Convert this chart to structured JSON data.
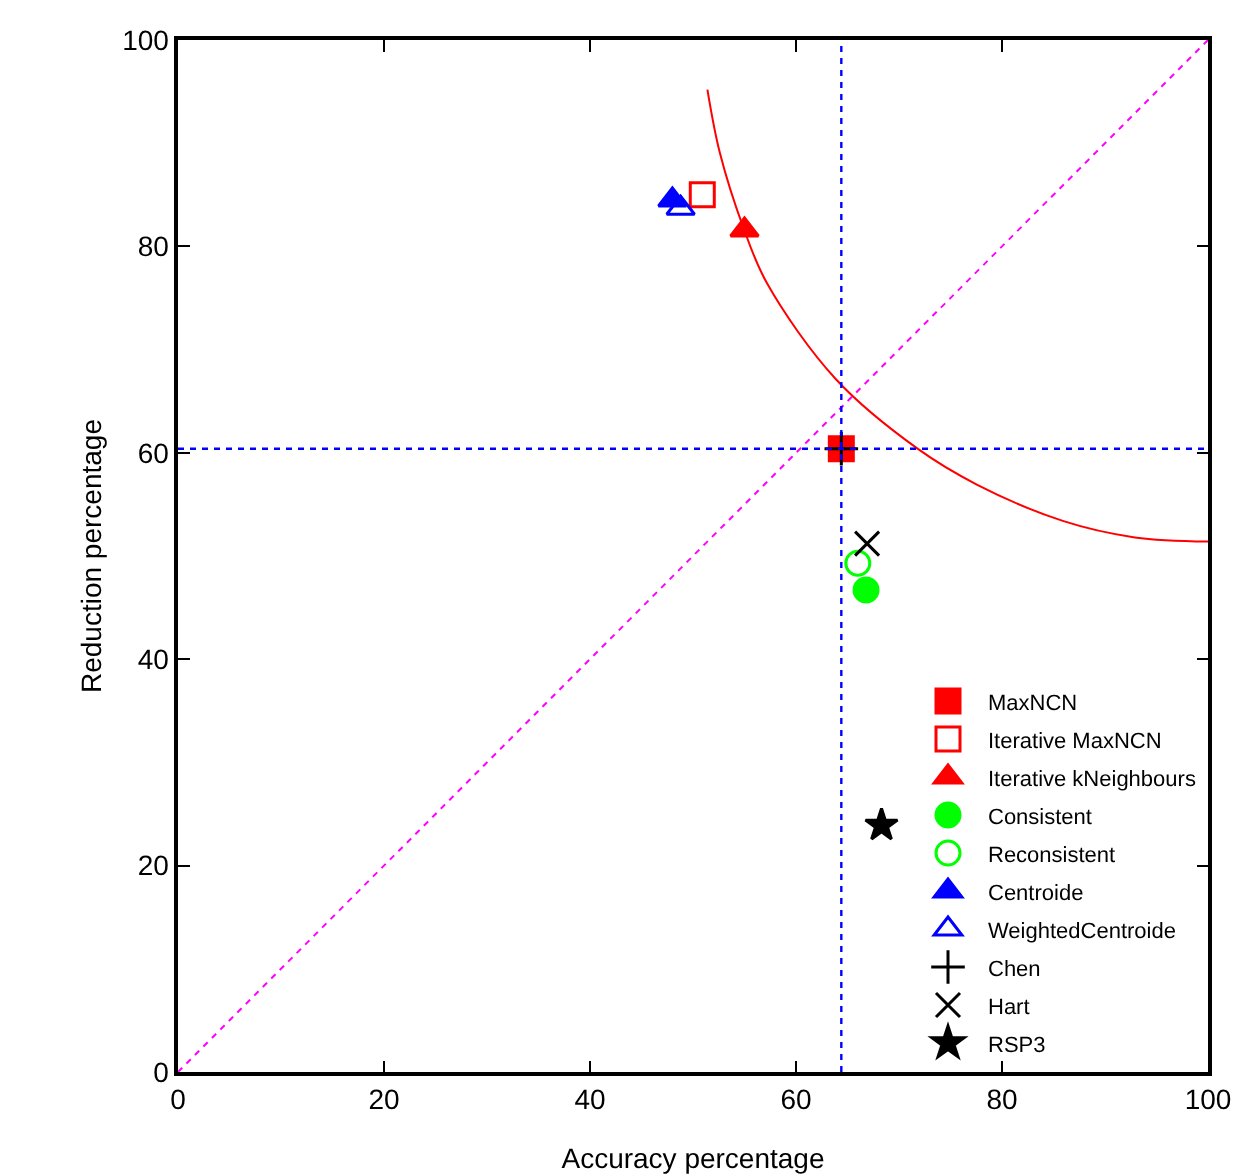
{
  "chart_data": {
    "type": "scatter",
    "xlabel": "Accuracy percentage",
    "ylabel": "Reduction percentage",
    "xlim": [
      0,
      100
    ],
    "ylim": [
      0,
      100
    ],
    "xticks": [
      0,
      20,
      40,
      60,
      80,
      100
    ],
    "yticks": [
      0,
      20,
      40,
      60,
      80,
      100
    ],
    "grid": false,
    "legend": "bottom right",
    "series": [
      {
        "type": "line",
        "color": "#ff00ff",
        "line_style": "dotted",
        "marker": "none",
        "x": [
          0,
          100
        ],
        "values": [
          0,
          100
        ]
      },
      {
        "type": "line",
        "color": "#ff0000",
        "line_style": "solid",
        "marker": "none",
        "x": [
          51.4,
          52.6,
          54.9,
          57.2,
          63.9,
          71.8,
          77.6,
          85.9,
          92.9,
          100
        ],
        "values": [
          95.2,
          89.1,
          81.8,
          76.4,
          67.1,
          60.4,
          56.9,
          53.4,
          51.8,
          51.4
        ]
      },
      {
        "name": "MaxNCN",
        "color": "#ff0000",
        "marker": "square",
        "x": [
          64.4
        ],
        "values": [
          60.4
        ]
      },
      {
        "name": "Iterative MaxNCN",
        "color": "#ff0000",
        "marker": "square-open",
        "x": [
          50.9
        ],
        "values": [
          85.0
        ]
      },
      {
        "name": "Iterative kNeighbours",
        "color": "#ff0000",
        "marker": "triangle",
        "x": [
          55.0
        ],
        "values": [
          81.6
        ]
      },
      {
        "name": "Consistent",
        "color": "#00ff00",
        "marker": "circle",
        "x": [
          66.8
        ],
        "values": [
          46.7
        ]
      },
      {
        "name": "Reconsistent",
        "color": "#00ff00",
        "marker": "circle-open",
        "x": [
          66.0
        ],
        "values": [
          49.3
        ]
      },
      {
        "name": "Centroide",
        "color": "#0000ff",
        "marker": "triangle",
        "x": [
          48.0
        ],
        "values": [
          84.5
        ]
      },
      {
        "name": "WeightedCentroide",
        "color": "#0000ff",
        "marker": "triangle-open",
        "x": [
          48.8
        ],
        "values": [
          83.7
        ]
      },
      {
        "name": "Chen",
        "color": "#000000",
        "marker": "cross",
        "x": [
          64.4
        ],
        "values": [
          60.4
        ]
      },
      {
        "name": "Hart",
        "color": "#000000",
        "marker": "x",
        "x": [
          66.9
        ],
        "values": [
          51.2
        ]
      },
      {
        "name": "RSP3",
        "color": "#000000",
        "marker": "star",
        "x": [
          68.3
        ],
        "values": [
          23.9
        ]
      }
    ],
    "ref_lines": [
      {
        "axis": "x",
        "value": 64.4,
        "color": "#0000ff",
        "line_style": "dotted"
      },
      {
        "axis": "y",
        "value": 60.4,
        "color": "#0000ff",
        "line_style": "dotted"
      }
    ]
  }
}
